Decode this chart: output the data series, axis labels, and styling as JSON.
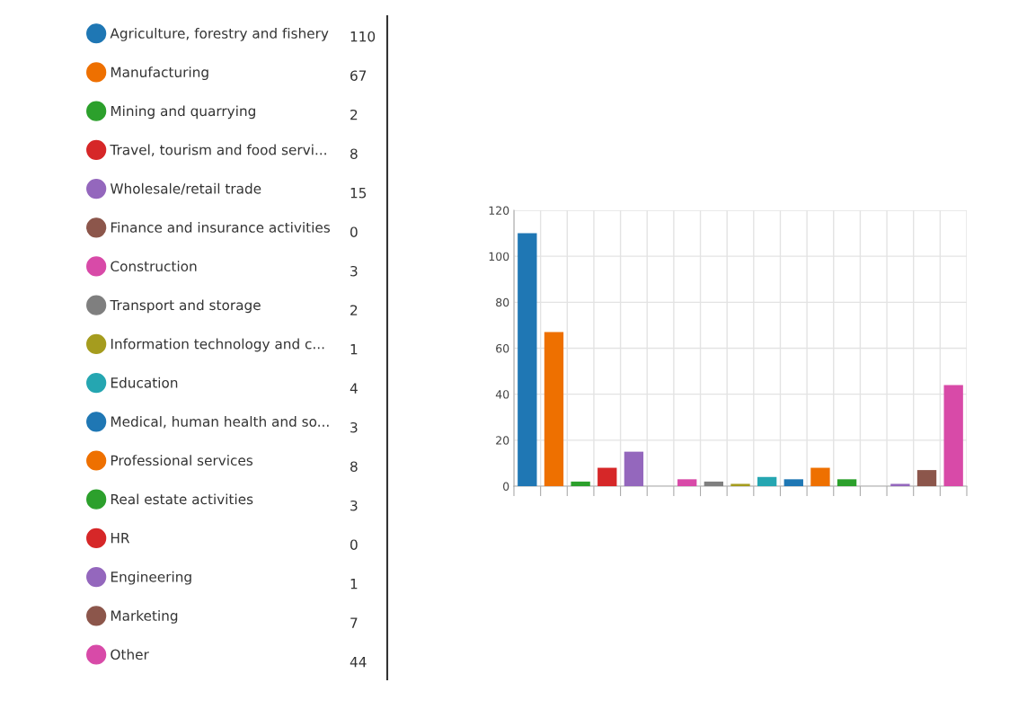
{
  "chart_data": {
    "type": "bar",
    "categories": [
      null,
      null,
      null,
      null,
      null,
      null,
      null,
      null,
      null,
      null,
      null,
      null,
      null,
      null,
      null,
      null,
      null
    ],
    "series": [
      {
        "name": "Agriculture, forestry and fishery",
        "color": "#1f77b4",
        "values": [
          110,
          null,
          null,
          null,
          null,
          null,
          null,
          null,
          null,
          null,
          null,
          null,
          null,
          null,
          null,
          null,
          null
        ]
      },
      {
        "name": "Manufacturing",
        "color": "#ee7000",
        "values": [
          null,
          67,
          null,
          null,
          null,
          null,
          null,
          null,
          null,
          null,
          null,
          null,
          null,
          null,
          null,
          null,
          null
        ]
      },
      {
        "name": "Mining and quarrying",
        "color": "#2ca02c",
        "values": [
          null,
          null,
          2,
          null,
          null,
          null,
          null,
          null,
          null,
          null,
          null,
          null,
          null,
          null,
          null,
          null,
          null
        ]
      },
      {
        "name": "Travel, tourism and food servi...",
        "color": "#d62728",
        "values": [
          null,
          null,
          null,
          8,
          null,
          null,
          null,
          null,
          null,
          null,
          null,
          null,
          null,
          null,
          null,
          null,
          null
        ]
      },
      {
        "name": "Wholesale/retail trade",
        "color": "#9467bd",
        "values": [
          null,
          null,
          null,
          null,
          15,
          null,
          null,
          null,
          null,
          null,
          null,
          null,
          null,
          null,
          null,
          null,
          null
        ]
      },
      {
        "name": "Finance and insurance activities",
        "color": "#8c564b",
        "values": [
          null,
          null,
          null,
          null,
          null,
          0,
          null,
          null,
          null,
          null,
          null,
          null,
          null,
          null,
          null,
          null,
          null
        ]
      },
      {
        "name": "Construction",
        "color": "#d84aa8",
        "values": [
          null,
          null,
          null,
          null,
          null,
          null,
          3,
          null,
          null,
          null,
          null,
          null,
          null,
          null,
          null,
          null,
          null
        ]
      },
      {
        "name": "Transport and storage",
        "color": "#7f7f7f",
        "values": [
          null,
          null,
          null,
          null,
          null,
          null,
          null,
          2,
          null,
          null,
          null,
          null,
          null,
          null,
          null,
          null,
          null
        ]
      },
      {
        "name": "Information technology and c...",
        "color": "#a59c1e",
        "values": [
          null,
          null,
          null,
          null,
          null,
          null,
          null,
          null,
          1,
          null,
          null,
          null,
          null,
          null,
          null,
          null,
          null
        ]
      },
      {
        "name": "Education",
        "color": "#25a6b1",
        "values": [
          null,
          null,
          null,
          null,
          null,
          null,
          null,
          null,
          null,
          4,
          null,
          null,
          null,
          null,
          null,
          null,
          null
        ]
      },
      {
        "name": "Medical, human health and so...",
        "color": "#1f77b4",
        "values": [
          null,
          null,
          null,
          null,
          null,
          null,
          null,
          null,
          null,
          null,
          3,
          null,
          null,
          null,
          null,
          null,
          null
        ]
      },
      {
        "name": "Professional services",
        "color": "#ee7000",
        "values": [
          null,
          null,
          null,
          null,
          null,
          null,
          null,
          null,
          null,
          null,
          null,
          8,
          null,
          null,
          null,
          null,
          null
        ]
      },
      {
        "name": "Real estate activities",
        "color": "#2ca02c",
        "values": [
          null,
          null,
          null,
          null,
          null,
          null,
          null,
          null,
          null,
          null,
          null,
          null,
          3,
          null,
          null,
          null,
          null
        ]
      },
      {
        "name": "HR",
        "color": "#d62728",
        "values": [
          null,
          null,
          null,
          null,
          null,
          null,
          null,
          null,
          null,
          null,
          null,
          null,
          null,
          0,
          null,
          null,
          null
        ]
      },
      {
        "name": "Engineering",
        "color": "#9467bd",
        "values": [
          null,
          null,
          null,
          null,
          null,
          null,
          null,
          null,
          null,
          null,
          null,
          null,
          null,
          null,
          1,
          null,
          null
        ]
      },
      {
        "name": "Marketing",
        "color": "#8c564b",
        "values": [
          null,
          null,
          null,
          null,
          null,
          null,
          null,
          null,
          null,
          null,
          null,
          null,
          null,
          null,
          null,
          7,
          null
        ]
      },
      {
        "name": "Other",
        "color": "#d84aa8",
        "values": [
          null,
          null,
          null,
          null,
          null,
          null,
          null,
          null,
          null,
          null,
          null,
          null,
          null,
          null,
          null,
          null,
          44
        ]
      }
    ],
    "annotations": [
      "110",
      "67",
      "2",
      "8",
      "15",
      "0",
      "3",
      "2",
      "1",
      "4",
      "3",
      "8",
      "3",
      "0",
      "1",
      "7",
      "44"
    ],
    "ylim": [
      0,
      120
    ],
    "yticks": [
      0,
      20,
      40,
      60,
      80,
      100,
      120
    ],
    "grid": true,
    "legend": "left"
  }
}
